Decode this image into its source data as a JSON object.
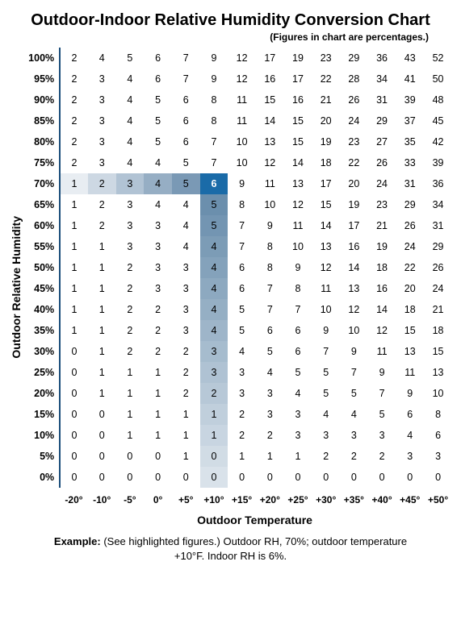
{
  "title": "Outdoor-Indoor Relative Humidity Conversion Chart",
  "subtitle": "(Figures in chart are percentages.)",
  "ylabel": "Outdoor Relative Humidity",
  "xlabel": "Outdoor Temperature",
  "row_labels": [
    "100%",
    "95%",
    "90%",
    "85%",
    "80%",
    "75%",
    "70%",
    "65%",
    "60%",
    "55%",
    "50%",
    "45%",
    "40%",
    "35%",
    "30%",
    "25%",
    "20%",
    "15%",
    "10%",
    "5%",
    "0%"
  ],
  "col_labels": [
    "-20°",
    "-10°",
    "-5°",
    "0°",
    "+5°",
    "+10°",
    "+15°",
    "+20°",
    "+25°",
    "+30°",
    "+35°",
    "+40°",
    "+45°",
    "+50°"
  ],
  "rows": [
    [
      2,
      4,
      5,
      6,
      7,
      9,
      12,
      17,
      19,
      23,
      29,
      36,
      43,
      52
    ],
    [
      2,
      3,
      4,
      6,
      7,
      9,
      12,
      16,
      17,
      22,
      28,
      34,
      41,
      50
    ],
    [
      2,
      3,
      4,
      5,
      6,
      8,
      11,
      15,
      16,
      21,
      26,
      31,
      39,
      48
    ],
    [
      2,
      3,
      4,
      5,
      6,
      8,
      11,
      14,
      15,
      20,
      24,
      29,
      37,
      45
    ],
    [
      2,
      3,
      4,
      5,
      6,
      7,
      10,
      13,
      15,
      19,
      23,
      27,
      35,
      42
    ],
    [
      2,
      3,
      4,
      4,
      5,
      7,
      10,
      12,
      14,
      18,
      22,
      26,
      33,
      39
    ],
    [
      1,
      2,
      3,
      4,
      5,
      6,
      9,
      11,
      13,
      17,
      20,
      24,
      31,
      36
    ],
    [
      1,
      2,
      3,
      4,
      4,
      5,
      8,
      10,
      12,
      15,
      19,
      23,
      29,
      34
    ],
    [
      1,
      2,
      3,
      3,
      4,
      5,
      7,
      9,
      11,
      14,
      17,
      21,
      26,
      31
    ],
    [
      1,
      1,
      3,
      3,
      4,
      4,
      7,
      8,
      10,
      13,
      16,
      19,
      24,
      29
    ],
    [
      1,
      1,
      2,
      3,
      3,
      4,
      6,
      8,
      9,
      12,
      14,
      18,
      22,
      26
    ],
    [
      1,
      1,
      2,
      3,
      3,
      4,
      6,
      7,
      8,
      11,
      13,
      16,
      20,
      24
    ],
    [
      1,
      1,
      2,
      2,
      3,
      4,
      5,
      7,
      7,
      10,
      12,
      14,
      18,
      21
    ],
    [
      1,
      1,
      2,
      2,
      3,
      4,
      5,
      6,
      6,
      9,
      10,
      12,
      15,
      18
    ],
    [
      0,
      1,
      2,
      2,
      2,
      3,
      4,
      5,
      6,
      7,
      9,
      11,
      13,
      15
    ],
    [
      0,
      1,
      1,
      1,
      2,
      3,
      3,
      4,
      5,
      5,
      7,
      9,
      11,
      13
    ],
    [
      0,
      1,
      1,
      1,
      2,
      2,
      3,
      3,
      4,
      5,
      5,
      7,
      9,
      10
    ],
    [
      0,
      0,
      1,
      1,
      1,
      1,
      2,
      3,
      3,
      4,
      4,
      5,
      6,
      8
    ],
    [
      0,
      0,
      1,
      1,
      1,
      1,
      2,
      2,
      3,
      3,
      3,
      3,
      4,
      6
    ],
    [
      0,
      0,
      0,
      0,
      1,
      0,
      1,
      1,
      1,
      2,
      2,
      2,
      3,
      3
    ],
    [
      0,
      0,
      0,
      0,
      0,
      0,
      0,
      0,
      0,
      0,
      0,
      0,
      0,
      0
    ]
  ],
  "highlight": {
    "row": 6,
    "col": 5
  },
  "row_gradient": {
    "start_color": "#e8edf2",
    "end_color": "#5f84a6"
  },
  "col_gradient": {
    "start_color": "#6b8fad",
    "end_color": "#d9e2ea"
  },
  "colors": {
    "axis_line": "#1a4d7a",
    "hl_bg": "#1a6ba8",
    "hl_fg": "#ffffff",
    "text": "#000000",
    "bg": "#ffffff"
  },
  "fonts": {
    "title_size": 20,
    "subtitle_size": 12,
    "label_size": 14,
    "cell_size": 12.5
  },
  "example_html": "<b>Example:</b> (See highlighted figures.) Outdoor RH, 70%; outdoor temperature +10°F. Indoor RH is 6%."
}
